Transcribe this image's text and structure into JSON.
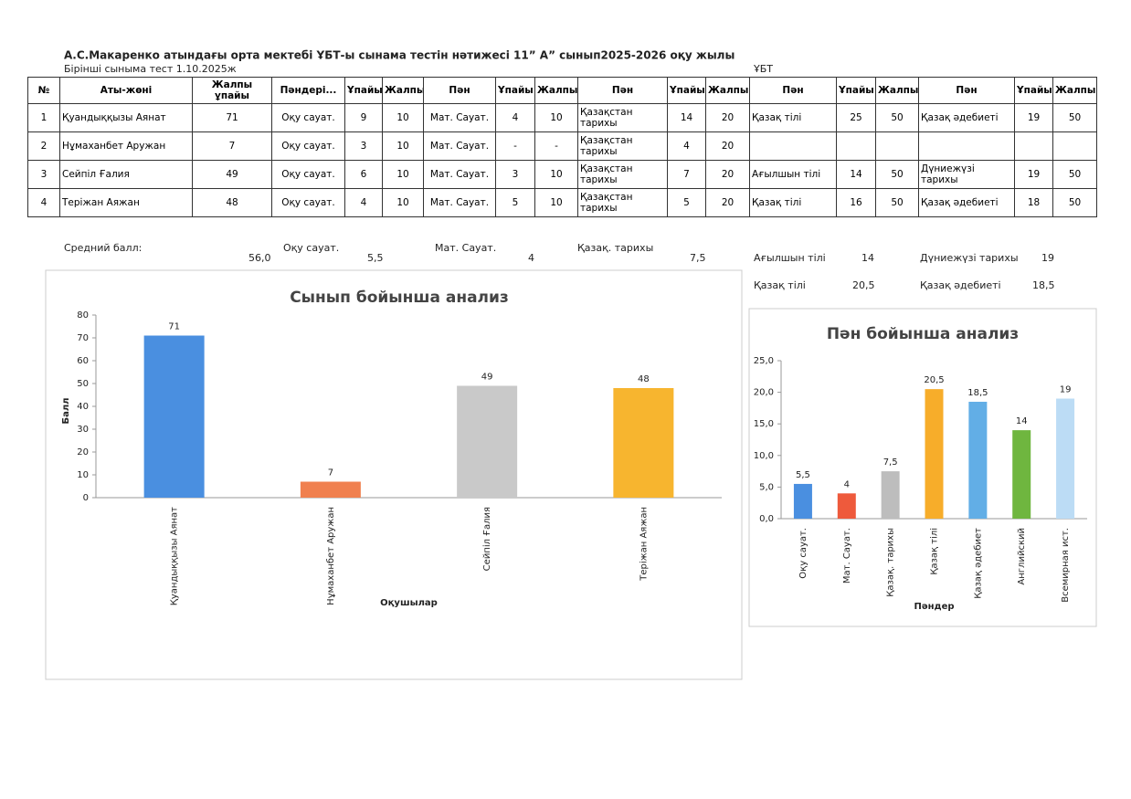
{
  "header": {
    "title": "А.С.Макаренко атындағы орта мектебі ҰБТ-ы сынама тестін нәтижесі 11” А”  сынып2025-2026 оқу жылы",
    "subtitle": "Бірінші сыныма тест 1.10.2025ж",
    "exam": "ҰБТ"
  },
  "table": {
    "header": [
      "№",
      "Аты-жөні",
      "Жалпы ұпайы",
      "Пәндері...",
      "Ұпайы",
      "Жалпы",
      "Пән",
      "Ұпайы",
      "Жалпы",
      "Пән",
      "Ұпайы",
      "Жалпы",
      "Пән",
      "Ұпайы",
      "Жалпы",
      "Пән",
      "Ұпайы",
      "Жалпы"
    ],
    "rows": [
      [
        "1",
        "Қуандыққызы Аянат",
        "71",
        "Оқу сауат.",
        "9",
        "10",
        "Мат. Сауат.",
        "4",
        "10",
        "Қазақстан тарихы",
        "14",
        "20",
        "Қазақ тілі",
        "25",
        "50",
        "Қазақ әдебиеті",
        "19",
        "50"
      ],
      [
        "2",
        "Нұмаханбет Аружан",
        "7",
        "Оқу сауат.",
        "3",
        "10",
        "Мат. Сауат.",
        "-",
        "-",
        "Қазақстан тарихы",
        "4",
        "20",
        null,
        null,
        null,
        null,
        null,
        null
      ],
      [
        "3",
        "Сейпіл Ғалия",
        "49",
        "Оқу сауат.",
        "6",
        "10",
        "Мат. Сауат.",
        "3",
        "10",
        "Қазақстан тарихы",
        "7",
        "20",
        "Ағылшын тілі",
        "14",
        "50",
        "Дүниежүзі тарихы",
        "19",
        "50"
      ],
      [
        "4",
        "Теріжан Аяжан",
        "48",
        "Оқу сауат.",
        "4",
        "10",
        "Мат. Сауат.",
        "5",
        "10",
        "Қазақстан тарихы",
        "5",
        "20",
        "Қазақ тілі",
        "16",
        "50",
        "Қазақ әдебиеті",
        "18",
        "50"
      ]
    ]
  },
  "averages": [
    {
      "label": "Средний балл:",
      "value": "56,0"
    },
    {
      "label": "Оқу сауат.",
      "value": "5,5"
    },
    {
      "label": "Мат. Сауат.",
      "value": "4"
    },
    {
      "label": "Қазақ. тарихы",
      "value": "7,5"
    },
    {
      "label": "Ағылшын тілі",
      "value": "14"
    },
    {
      "label": "Дүниежүзі тарихы",
      "value": "19"
    },
    {
      "label": "Қазақ тілі",
      "value": "20,5"
    },
    {
      "label": "Қазақ әдебиеті",
      "value": "18,5"
    }
  ],
  "chart_data": [
    {
      "type": "bar",
      "title": "Сынып бойынша анализ",
      "x_label": "Оқушылар",
      "y_label": "Балл",
      "categories": [
        "Қуандыққызы Аянат",
        "Нұмаханбет Аружан",
        "Сейпіл Ғалия",
        "Теріжан Аяжан"
      ],
      "values": [
        71,
        7,
        49,
        48
      ],
      "colors": [
        "#4a8fe0",
        "#f0804f",
        "#c9c9c9",
        "#f7b52f"
      ],
      "ylim": [
        0,
        80
      ],
      "yticks": [
        0,
        10,
        20,
        30,
        40,
        50,
        60,
        70,
        80
      ],
      "grid": false
    },
    {
      "type": "bar",
      "title": "Пән бойынша анализ",
      "x_label": "Пәндер",
      "categories": [
        "Оқу сауат.",
        "Мат. Сауат.",
        "Қазақ. тарихы",
        "Қазақ тілі",
        "Қазақ әдебиет",
        "Английский",
        "Всемирная ист."
      ],
      "values": [
        5.5,
        4,
        7.5,
        20.5,
        18.5,
        14,
        19
      ],
      "value_labels": [
        "5,5",
        "4",
        "7,5",
        "20,5",
        "18,5",
        "14",
        "19"
      ],
      "colors": [
        "#4a8fe0",
        "#ee5a3c",
        "#bdbdbd",
        "#f7ad2a",
        "#62aee6",
        "#6fb63f",
        "#bcdcf5"
      ],
      "ylim": [
        0,
        25
      ],
      "yticks": [
        {
          "value": 0,
          "label": "0,0"
        },
        {
          "value": 5,
          "label": "5,0"
        },
        {
          "value": 10,
          "label": "10,0"
        },
        {
          "value": 15,
          "label": "15,0"
        },
        {
          "value": 20,
          "label": "20,0"
        },
        {
          "value": 25,
          "label": "25,0"
        }
      ],
      "grid": false
    }
  ]
}
